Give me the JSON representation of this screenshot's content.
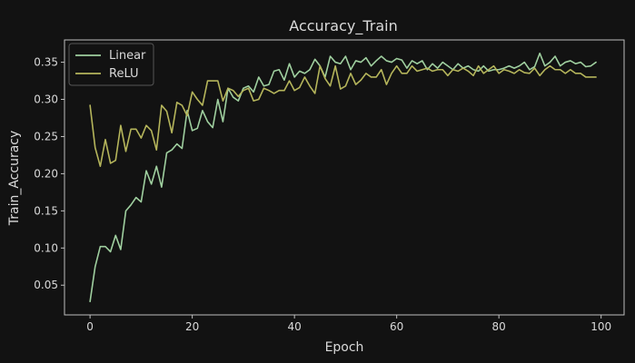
{
  "chart_data": {
    "type": "line",
    "title": "Accuracy_Train",
    "xlabel": "Epoch",
    "ylabel": "Train_Accuracy",
    "xlim": [
      -5,
      104.5
    ],
    "ylim": [
      0.01,
      0.38
    ],
    "xticks": [
      0,
      20,
      40,
      60,
      80,
      100
    ],
    "yticks": [
      0.05,
      0.1,
      0.15,
      0.2,
      0.25,
      0.3,
      0.35
    ],
    "ytick_labels": [
      "0.05",
      "0.10",
      "0.15",
      "0.20",
      "0.25",
      "0.30",
      "0.35"
    ],
    "grid": false,
    "legend_position": "top-left",
    "background": "#121212",
    "series": [
      {
        "name": "Linear",
        "color": "#9fcf9f",
        "x": [
          0,
          1,
          2,
          3,
          4,
          5,
          6,
          7,
          8,
          9,
          10,
          11,
          12,
          13,
          14,
          15,
          16,
          17,
          18,
          19,
          20,
          21,
          22,
          23,
          24,
          25,
          26,
          27,
          28,
          29,
          30,
          31,
          32,
          33,
          34,
          35,
          36,
          37,
          38,
          39,
          40,
          41,
          42,
          43,
          44,
          45,
          46,
          47,
          48,
          49,
          50,
          51,
          52,
          53,
          54,
          55,
          56,
          57,
          58,
          59,
          60,
          61,
          62,
          63,
          64,
          65,
          66,
          67,
          68,
          69,
          70,
          71,
          72,
          73,
          74,
          75,
          76,
          77,
          78,
          79,
          80,
          81,
          82,
          83,
          84,
          85,
          86,
          87,
          88,
          89,
          90,
          91,
          92,
          93,
          94,
          95,
          96,
          97,
          98,
          99
        ],
        "values": [
          0.028,
          0.075,
          0.102,
          0.102,
          0.095,
          0.117,
          0.098,
          0.15,
          0.158,
          0.168,
          0.162,
          0.204,
          0.186,
          0.21,
          0.182,
          0.228,
          0.232,
          0.24,
          0.234,
          0.285,
          0.258,
          0.261,
          0.285,
          0.27,
          0.262,
          0.3,
          0.27,
          0.315,
          0.303,
          0.298,
          0.315,
          0.318,
          0.31,
          0.33,
          0.318,
          0.32,
          0.338,
          0.34,
          0.326,
          0.348,
          0.33,
          0.338,
          0.335,
          0.34,
          0.354,
          0.345,
          0.33,
          0.358,
          0.35,
          0.348,
          0.358,
          0.34,
          0.352,
          0.35,
          0.356,
          0.345,
          0.352,
          0.358,
          0.352,
          0.35,
          0.355,
          0.353,
          0.342,
          0.352,
          0.348,
          0.352,
          0.34,
          0.348,
          0.342,
          0.35,
          0.345,
          0.34,
          0.348,
          0.342,
          0.345,
          0.34,
          0.338,
          0.345,
          0.338,
          0.34,
          0.34,
          0.342,
          0.345,
          0.342,
          0.345,
          0.35,
          0.34,
          0.344,
          0.362,
          0.345,
          0.35,
          0.358,
          0.345,
          0.35,
          0.352,
          0.348,
          0.35,
          0.344,
          0.345,
          0.35
        ]
      },
      {
        "name": "ReLU",
        "color": "#b5b55b",
        "x": [
          0,
          1,
          2,
          3,
          4,
          5,
          6,
          7,
          8,
          9,
          10,
          11,
          12,
          13,
          14,
          15,
          16,
          17,
          18,
          19,
          20,
          21,
          22,
          23,
          24,
          25,
          26,
          27,
          28,
          29,
          30,
          31,
          32,
          33,
          34,
          35,
          36,
          37,
          38,
          39,
          40,
          41,
          42,
          43,
          44,
          45,
          46,
          47,
          48,
          49,
          50,
          51,
          52,
          53,
          54,
          55,
          56,
          57,
          58,
          59,
          60,
          61,
          62,
          63,
          64,
          65,
          66,
          67,
          68,
          69,
          70,
          71,
          72,
          73,
          74,
          75,
          76,
          77,
          78,
          79,
          80,
          81,
          82,
          83,
          84,
          85,
          86,
          87,
          88,
          89,
          90,
          91,
          92,
          93,
          94,
          95,
          96,
          97,
          98,
          99
        ],
        "values": [
          0.292,
          0.235,
          0.21,
          0.246,
          0.214,
          0.218,
          0.265,
          0.23,
          0.26,
          0.26,
          0.248,
          0.265,
          0.258,
          0.232,
          0.292,
          0.284,
          0.255,
          0.296,
          0.292,
          0.278,
          0.31,
          0.3,
          0.292,
          0.325,
          0.325,
          0.325,
          0.298,
          0.315,
          0.312,
          0.304,
          0.312,
          0.315,
          0.298,
          0.3,
          0.315,
          0.312,
          0.308,
          0.312,
          0.312,
          0.325,
          0.312,
          0.316,
          0.33,
          0.318,
          0.308,
          0.345,
          0.328,
          0.318,
          0.345,
          0.314,
          0.318,
          0.335,
          0.32,
          0.326,
          0.335,
          0.33,
          0.33,
          0.34,
          0.32,
          0.335,
          0.345,
          0.335,
          0.335,
          0.345,
          0.338,
          0.34,
          0.342,
          0.338,
          0.34,
          0.34,
          0.332,
          0.34,
          0.338,
          0.342,
          0.338,
          0.332,
          0.345,
          0.335,
          0.34,
          0.345,
          0.335,
          0.34,
          0.338,
          0.335,
          0.34,
          0.336,
          0.335,
          0.342,
          0.332,
          0.34,
          0.345,
          0.34,
          0.34,
          0.335,
          0.34,
          0.335,
          0.335,
          0.33,
          0.33,
          0.33
        ]
      }
    ]
  }
}
